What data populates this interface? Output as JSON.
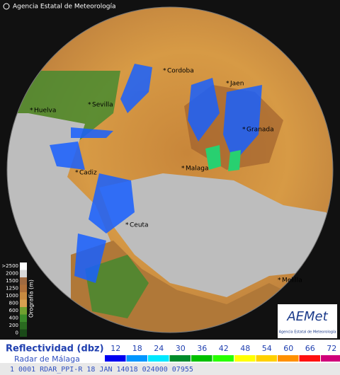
{
  "header": {
    "agency": "Agencia Estatal de Meteorología"
  },
  "cities": [
    "Cordoba",
    "Jaen",
    "Sevilla",
    "Huelva",
    "Granada",
    "Malaga",
    "Cadiz",
    "Ceuta",
    "Melilla"
  ],
  "orography": {
    "title": "Orografía (m)",
    "ticks": [
      ">2500",
      "2000",
      "1500",
      "1250",
      "1000",
      "800",
      "600",
      "400",
      "200",
      "0"
    ]
  },
  "legend": {
    "title": "Reflectividad (dbz)",
    "radar": "Radar de Málaga",
    "values": [
      12,
      18,
      24,
      30,
      36,
      42,
      48,
      54,
      60,
      66,
      72
    ],
    "colors": [
      "#0000f0",
      "#0096ff",
      "#00e8ff",
      "#008c2c",
      "#00c000",
      "#28ff00",
      "#ffff00",
      "#ffd000",
      "#ff9000",
      "#ff1010",
      "#d0007a"
    ]
  },
  "logo": {
    "name": "AEMet",
    "subtitle": "Agencia Estatal de Meteorología"
  },
  "footer": {
    "text": "1 0001 RDAR_PPI-R 18 JAN 14018 024000 07955"
  }
}
